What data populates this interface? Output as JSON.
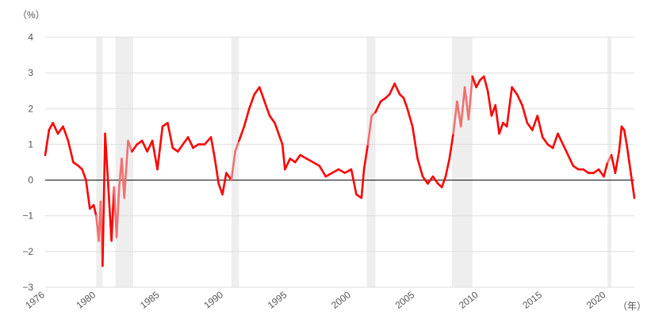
{
  "chart_data": {
    "type": "line",
    "title": "",
    "y_unit_label": "（%）",
    "x_unit_label": "（年）",
    "xlim": [
      1976,
      2022.2
    ],
    "ylim": [
      -3,
      4
    ],
    "y_ticks": [
      "4",
      "3",
      "2",
      "1",
      "0",
      "−1",
      "−2",
      "−3"
    ],
    "y_tick_values": [
      4,
      3,
      2,
      1,
      0,
      -1,
      -2,
      -3
    ],
    "x_ticks": [
      "1976",
      "1980",
      "1985",
      "1990",
      "1995",
      "2000",
      "2005",
      "2010",
      "2015",
      "2020"
    ],
    "x_tick_values": [
      1976,
      1980,
      1985,
      1990,
      1995,
      2000,
      2005,
      2010,
      2015,
      2020
    ],
    "grid": "horizontal",
    "zero_line": true,
    "colors": {
      "line": "#ff0000",
      "line_in_shading": "#f07070",
      "shading": "#eeeeee",
      "grid": "#dddddd"
    },
    "shaded_periods": [
      [
        1980.0,
        1980.5
      ],
      [
        1981.5,
        1982.9
      ],
      [
        1990.6,
        1991.2
      ],
      [
        2001.2,
        2001.9
      ],
      [
        2007.9,
        2009.5
      ],
      [
        2020.1,
        2020.4
      ]
    ],
    "series": [
      {
        "x": [
          1976.0,
          1976.3,
          1976.6,
          1977.0,
          1977.4,
          1977.8,
          1978.2,
          1978.6,
          1978.9,
          1979.2,
          1979.5,
          1979.8,
          1980.0,
          1980.2,
          1980.35,
          1980.5,
          1980.7,
          1981.0,
          1981.2,
          1981.4,
          1981.6,
          1981.8,
          1982.0,
          1982.2,
          1982.5,
          1982.8,
          1983.2,
          1983.6,
          1984.0,
          1984.4,
          1984.8,
          1985.2,
          1985.6,
          1986.0,
          1986.4,
          1986.8,
          1987.2,
          1987.6,
          1988.0,
          1988.5,
          1989.0,
          1989.3,
          1989.6,
          1989.9,
          1990.2,
          1990.6,
          1990.9,
          1991.2,
          1991.6,
          1992.0,
          1992.4,
          1992.8,
          1993.2,
          1993.6,
          1994.0,
          1994.4,
          1994.6,
          1994.8,
          1995.2,
          1995.6,
          1996.0,
          1996.5,
          1997.0,
          1997.5,
          1998.0,
          1998.5,
          1999.0,
          1999.5,
          2000.0,
          2000.4,
          2000.8,
          2001.0,
          2001.3,
          2001.6,
          2001.9,
          2002.3,
          2002.7,
          2003.0,
          2003.4,
          2003.8,
          2004.1,
          2004.4,
          2004.8,
          2005.2,
          2005.6,
          2006.0,
          2006.4,
          2006.8,
          2007.1,
          2007.4,
          2007.7,
          2008.0,
          2008.3,
          2008.6,
          2008.9,
          2009.2,
          2009.5,
          2009.8,
          2010.1,
          2010.4,
          2010.7,
          2011.0,
          2011.3,
          2011.6,
          2011.9,
          2012.2,
          2012.6,
          2013.0,
          2013.4,
          2013.8,
          2014.2,
          2014.6,
          2015.0,
          2015.4,
          2015.8,
          2016.2,
          2016.6,
          2017.0,
          2017.4,
          2017.8,
          2018.2,
          2018.6,
          2019.0,
          2019.4,
          2019.8,
          2020.1,
          2020.4,
          2020.7,
          2021.0,
          2021.2,
          2021.4,
          2021.6,
          2021.8,
          2022.0,
          2022.2
        ],
        "y": [
          0.7,
          1.4,
          1.6,
          1.3,
          1.5,
          1.1,
          0.5,
          0.4,
          0.3,
          0.0,
          -0.8,
          -0.7,
          -1.0,
          -1.7,
          -0.6,
          -2.4,
          1.3,
          -0.5,
          -1.7,
          -0.2,
          -1.6,
          -0.2,
          0.6,
          -0.5,
          1.1,
          0.8,
          1.0,
          1.1,
          0.8,
          1.1,
          0.3,
          1.5,
          1.6,
          0.9,
          0.8,
          1.0,
          1.2,
          0.9,
          1.0,
          1.0,
          1.2,
          0.6,
          -0.1,
          -0.4,
          0.2,
          0.0,
          0.8,
          1.1,
          1.5,
          2.0,
          2.4,
          2.6,
          2.2,
          1.8,
          1.6,
          1.2,
          1.0,
          0.3,
          0.6,
          0.5,
          0.7,
          0.6,
          0.5,
          0.4,
          0.1,
          0.2,
          0.3,
          0.2,
          0.3,
          -0.4,
          -0.5,
          0.3,
          1.0,
          1.8,
          1.9,
          2.2,
          2.3,
          2.4,
          2.7,
          2.4,
          2.3,
          2.0,
          1.5,
          0.6,
          0.1,
          -0.1,
          0.1,
          -0.1,
          -0.2,
          0.1,
          0.6,
          1.3,
          2.2,
          1.5,
          2.6,
          1.7,
          2.9,
          2.6,
          2.8,
          2.9,
          2.5,
          1.8,
          2.1,
          1.3,
          1.6,
          1.5,
          2.6,
          2.4,
          2.1,
          1.6,
          1.4,
          1.8,
          1.2,
          1.0,
          0.9,
          1.3,
          1.0,
          0.7,
          0.4,
          0.3,
          0.3,
          0.2,
          0.2,
          0.3,
          0.1,
          0.5,
          0.7,
          0.2,
          0.8,
          1.5,
          1.4,
          1.0,
          0.5,
          0.0,
          -0.5
        ]
      }
    ]
  }
}
